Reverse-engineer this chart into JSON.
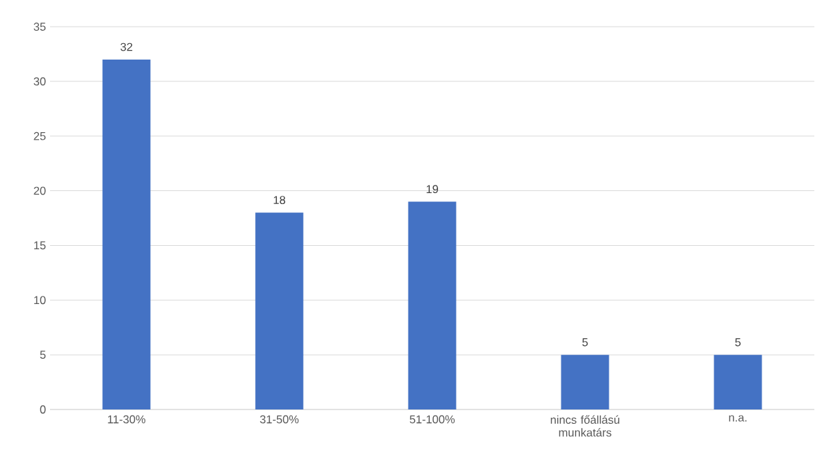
{
  "chart_data": {
    "type": "bar",
    "categories": [
      "11-30%",
      "31-50%",
      "51-100%",
      "nincs főállású munkatárs",
      "n.a."
    ],
    "values": [
      32,
      18,
      19,
      5,
      5
    ],
    "color": "#4472c4",
    "ylim": [
      0,
      35
    ],
    "yticks": [
      0,
      5,
      10,
      15,
      20,
      25,
      30,
      35
    ],
    "grid": "y",
    "data_labels": true
  }
}
